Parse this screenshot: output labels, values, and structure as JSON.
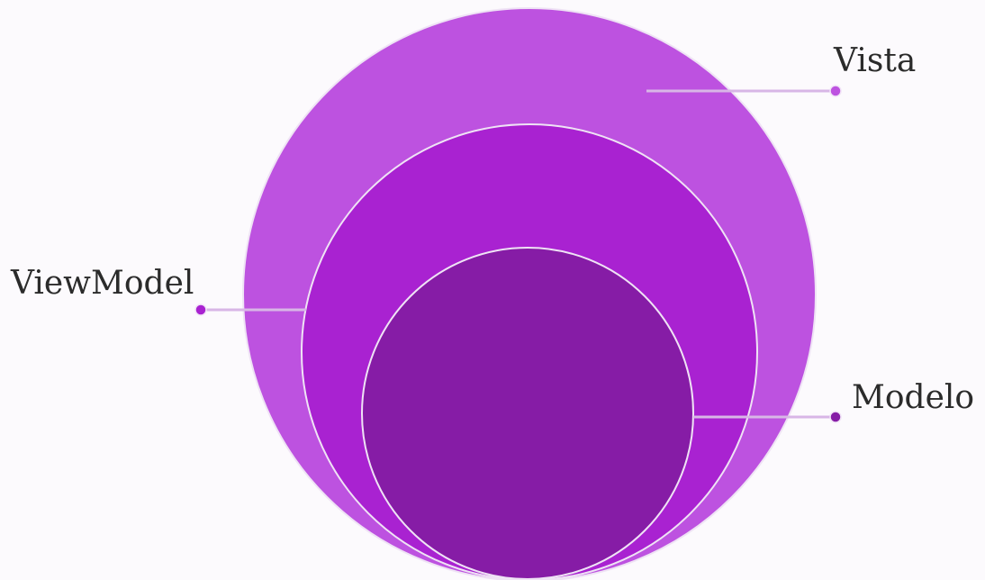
{
  "diagram": {
    "layers": [
      {
        "id": "outer",
        "label": "Vista",
        "color": "#bd52e0"
      },
      {
        "id": "middle",
        "label": "ViewModel",
        "color": "#a922d1"
      },
      {
        "id": "inner",
        "label": "Modelo",
        "color": "#861ca6"
      }
    ],
    "connector_color": "#d8b6e6",
    "stroke_color": "#efe3f5"
  }
}
